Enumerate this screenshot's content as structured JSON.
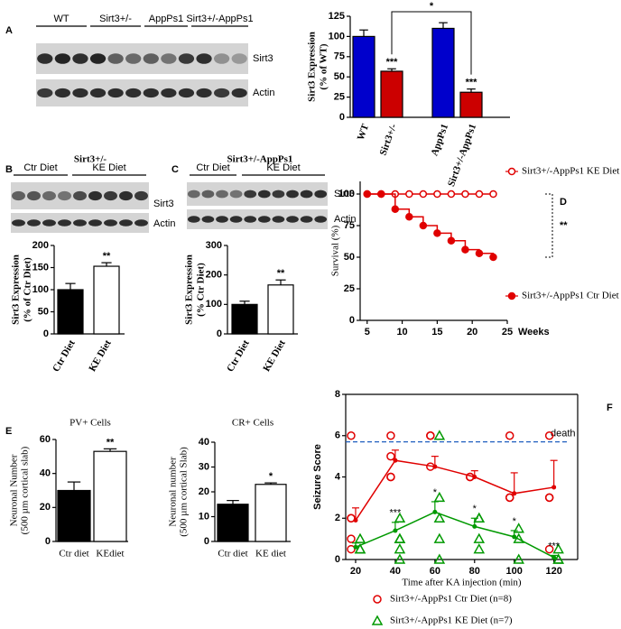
{
  "figure": {
    "panel_labels": [
      "A",
      "B",
      "C",
      "D",
      "E",
      "F"
    ],
    "blot_a": {
      "groups": [
        "WT",
        "Sirt3+/-",
        "AppPs1",
        "Sirt3+/-AppPs1"
      ],
      "bands": [
        "Sirt3",
        "Actin"
      ]
    },
    "blot_b": {
      "groups": [
        "Ctr Diet",
        "KE Diet"
      ],
      "bands": [
        "Sirt3",
        "Actin"
      ]
    },
    "blot_c": {
      "groups": [
        "Ctr Diet",
        "KE Diet"
      ],
      "bands": [
        "Sirt3",
        "Actin"
      ]
    }
  },
  "chart_data": [
    {
      "type": "bar",
      "ylabel": [
        "Sirt3 Expression",
        "(% of WT)"
      ],
      "categories": [
        "WT",
        "Sirt3+/-",
        "AppPs1",
        "Sirt3+/-AppPs1"
      ],
      "values": [
        100,
        57,
        110,
        31
      ],
      "errors": [
        8,
        3,
        7,
        4
      ],
      "colors": [
        "#0000cc",
        "#cc0000",
        "#0000cc",
        "#cc0000"
      ],
      "significance": [
        null,
        "***",
        null,
        "***"
      ],
      "bracket_label": "*",
      "ylim": [
        0,
        125
      ],
      "yticks": [
        0,
        25,
        50,
        75,
        100,
        125
      ]
    },
    {
      "type": "bar",
      "title": "Sirt3+/-",
      "ylabel": [
        "Sirt3 Expression",
        "(% of Ctr Diet)"
      ],
      "categories": [
        "Ctr Diet",
        "KE Diet"
      ],
      "values": [
        100,
        153
      ],
      "errors": [
        14,
        8
      ],
      "colors": [
        "#000000",
        "#ffffff"
      ],
      "significance": [
        null,
        "**"
      ],
      "ylim": [
        0,
        200
      ],
      "yticks": [
        0,
        50,
        100,
        150,
        200
      ]
    },
    {
      "type": "bar",
      "title": "Sirt3+/-AppPs1",
      "ylabel": [
        "Sirt3 Expression",
        "(% Ctr Diet)"
      ],
      "categories": [
        "Ctr Diet",
        "KE Diet"
      ],
      "values": [
        100,
        166
      ],
      "errors": [
        11,
        17
      ],
      "colors": [
        "#000000",
        "#ffffff"
      ],
      "significance": [
        null,
        "**"
      ],
      "ylim": [
        0,
        300
      ],
      "yticks": [
        0,
        100,
        200,
        300
      ]
    },
    {
      "type": "line",
      "step": true,
      "ylabel": "Survival (%)",
      "xlabel": "Weeks",
      "x": [
        5,
        7,
        9,
        11,
        13,
        15,
        17,
        19,
        21,
        23
      ],
      "series": [
        {
          "name": "Sirt3+/-AppPs1 KE Diet",
          "color": "#e00000",
          "marker": "open",
          "values": [
            100,
            100,
            100,
            100,
            100,
            100,
            100,
            100,
            100,
            100
          ]
        },
        {
          "name": "Sirt3+/-AppPs1 Ctr Diet",
          "color": "#e00000",
          "marker": "filled",
          "values": [
            100,
            100,
            88,
            82,
            75,
            69,
            63,
            56,
            53,
            50
          ]
        }
      ],
      "significance": "**",
      "xlim": [
        4,
        25
      ],
      "xticks": [
        5,
        10,
        15,
        20,
        25
      ],
      "ylim": [
        0,
        110
      ],
      "yticks": [
        0,
        25,
        50,
        75,
        100
      ]
    },
    {
      "type": "bar",
      "title": "PV+ Cells",
      "ylabel": [
        "Neuronal Number",
        "(500 µm cortical slab)"
      ],
      "categories": [
        "Ctr diet",
        "KEdiet"
      ],
      "values": [
        30,
        53
      ],
      "errors": [
        5,
        1.5
      ],
      "colors": [
        "#000000",
        "#ffffff"
      ],
      "significance": [
        null,
        "**"
      ],
      "ylim": [
        0,
        60
      ],
      "yticks": [
        0,
        20,
        40,
        60
      ]
    },
    {
      "type": "bar",
      "title": "CR+ Cells",
      "ylabel": [
        "Neuronal number",
        "(500 µm cortical Slab)"
      ],
      "categories": [
        "Ctr diet",
        "KE diet"
      ],
      "values": [
        15,
        23
      ],
      "errors": [
        1.5,
        0.6
      ],
      "colors": [
        "#000000",
        "#ffffff"
      ],
      "significance": [
        null,
        "*"
      ],
      "ylim": [
        0,
        40
      ],
      "yticks": [
        0,
        10,
        20,
        30,
        40
      ]
    },
    {
      "type": "line",
      "ylabel": "Seizure Score",
      "xlabel": "Time  after KA injection (min)",
      "x": [
        20,
        40,
        60,
        80,
        100,
        120
      ],
      "series": [
        {
          "name": "Sirt3+/-AppPs1 Ctr Diet (n=8)",
          "color": "#e00000",
          "marker": "circle",
          "values": [
            1.9,
            4.8,
            4.5,
            4.0,
            3.2,
            3.5
          ],
          "errors": [
            0.6,
            0.5,
            0.5,
            0.3,
            1.0,
            1.3
          ],
          "points_x": [
            20,
            20,
            20,
            20,
            20,
            40,
            40,
            40,
            40,
            60,
            60,
            60,
            80,
            80,
            100,
            100,
            100,
            120,
            120,
            120,
            120
          ],
          "points": [
            6,
            2,
            2,
            1,
            0.5,
            6,
            5,
            4,
            4,
            6,
            4.5,
            6,
            4,
            4,
            6,
            3,
            3,
            6,
            3,
            3,
            0.5
          ]
        },
        {
          "name": "Sirt3+/-AppPs1 KE Diet (n=7)",
          "color": "#009900",
          "marker": "triangle",
          "values": [
            0.6,
            1.4,
            2.3,
            1.6,
            1.1,
            0.1
          ],
          "errors": [
            0.2,
            0.4,
            0.5,
            0.4,
            0.3,
            0.1
          ],
          "points_x": [
            20,
            20,
            20,
            40,
            40,
            40,
            40,
            40,
            60,
            60,
            60,
            60,
            60,
            80,
            80,
            80,
            80,
            100,
            100,
            100,
            120,
            120,
            120
          ],
          "points": [
            0.5,
            0.5,
            1,
            2,
            1,
            0.5,
            1,
            0,
            6,
            3,
            2,
            1,
            0,
            2,
            2,
            1,
            0.5,
            1.5,
            1,
            0,
            0.5,
            0,
            0
          ]
        }
      ],
      "annotations": [
        {
          "x": 40,
          "text": "***"
        },
        {
          "x": 60,
          "text": "*"
        },
        {
          "x": 80,
          "text": "*"
        },
        {
          "x": 100,
          "text": "*"
        },
        {
          "x": 120,
          "text": "***"
        }
      ],
      "annotation_color": "#0000cc",
      "death_line": {
        "value": 5.7,
        "label": "death",
        "color": "#1f5fbf"
      },
      "xlim": [
        15,
        132
      ],
      "xticks": [
        20,
        40,
        60,
        80,
        100,
        120
      ],
      "ylim": [
        0,
        8
      ],
      "yticks": [
        0,
        2,
        4,
        6,
        8
      ]
    }
  ]
}
